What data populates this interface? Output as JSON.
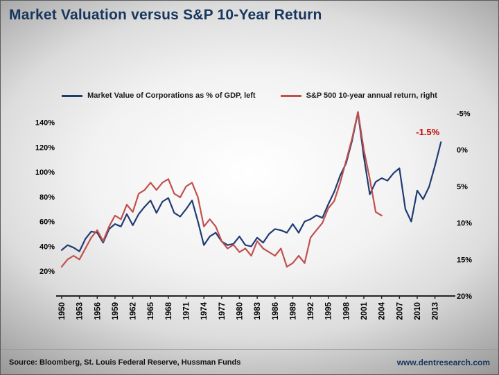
{
  "page": {
    "title": "Market Valuation versus S&P 10-Year Return",
    "source": "Source: Bloomberg, St. Louis Federal Reserve, Hussman Funds",
    "website": "www.dentresearch.com"
  },
  "colors": {
    "title": "#17365D",
    "website_link": "#17365D",
    "blue_series": "#1F3B73",
    "red_series": "#C0504D",
    "annotation": "#C00000",
    "axis_text": "#000000"
  },
  "chart_data": {
    "type": "line",
    "title": "Market Valuation versus S&P 10-Year Return",
    "grid": false,
    "legend_position": "top-center",
    "legend": [
      {
        "label": "Market Value of Corporations as % of GDP, left",
        "color": "#1F3B73"
      },
      {
        "label": "S&P 500 10-year annual return, right",
        "color": "#C0504D"
      }
    ],
    "x_range": [
      1950,
      2014.8
    ],
    "x_ticks": [
      "1950",
      "1953",
      "1956",
      "1959",
      "1962",
      "1965",
      "1968",
      "1971",
      "1974",
      "1977",
      "1980",
      "1983",
      "1986",
      "1989",
      "1992",
      "1995",
      "1998",
      "2001",
      "2004",
      "2007",
      "2010",
      "2013"
    ],
    "left_axis": {
      "ticks": [
        "140%",
        "120%",
        "100%",
        "80%",
        "60%",
        "40%",
        "20%"
      ],
      "min": 0,
      "max": 152,
      "label": "Market value of corporations as % of GDP"
    },
    "right_axis": {
      "ticks": [
        "-5%",
        "0%",
        "5%",
        "10%",
        "15%",
        "20%"
      ],
      "top_value": -5.8,
      "bottom_value": 20,
      "inverted": true,
      "label": "S&P 500 10-year annual return"
    },
    "annotation": {
      "text": "-1.5%",
      "x": 2009.8,
      "y_right": -2.0,
      "color": "#C00000"
    },
    "series": [
      {
        "name": "Market Value of Corporations as % of GDP",
        "axis": "left",
        "color": "#1F3B73",
        "unit": "% of GDP",
        "x_start": 1950,
        "x_step": 1,
        "values": [
          37,
          41,
          39,
          36,
          46,
          52,
          51,
          43,
          54,
          58,
          56,
          66,
          57,
          66,
          72,
          77,
          67,
          76,
          79,
          67,
          64,
          70,
          77,
          60,
          41,
          48,
          51,
          44,
          41,
          42,
          48,
          41,
          40,
          47,
          43,
          50,
          54,
          53,
          51,
          58,
          51,
          60,
          62,
          65,
          63,
          74,
          84,
          97,
          107,
          125,
          148,
          112,
          82,
          92,
          95,
          93,
          99,
          103,
          70,
          60,
          85,
          78,
          88,
          105,
          124
        ]
      },
      {
        "name": "S&P 500 10-year annual return",
        "axis": "right",
        "color": "#C0504D",
        "unit": "% per year",
        "x_start": 1950,
        "x_step": 1,
        "values": [
          16,
          15,
          14.5,
          15,
          13.5,
          12,
          11,
          12.5,
          10.5,
          9,
          9.5,
          7.5,
          8.5,
          6,
          5.5,
          4.5,
          5.5,
          4.5,
          4,
          6,
          6.5,
          5,
          4.5,
          6.5,
          10.5,
          9.5,
          10.5,
          12.5,
          13.5,
          13,
          14,
          13.5,
          14.5,
          12.5,
          13.5,
          14,
          14.5,
          13.5,
          16,
          15.5,
          14.5,
          15.5,
          12,
          11,
          10,
          8,
          7,
          4.5,
          1.5,
          -1.5,
          -5.2,
          0,
          4,
          8.5,
          9
        ]
      }
    ]
  }
}
